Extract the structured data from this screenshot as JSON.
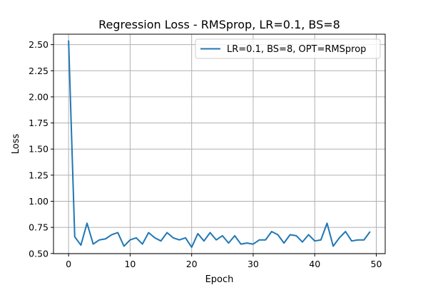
{
  "chart_data": {
    "type": "line",
    "title": "Regression Loss - RMSprop, LR=0.1, BS=8",
    "xlabel": "Epoch",
    "ylabel": "Loss",
    "xlim": [
      -2.45,
      51.45
    ],
    "ylim": [
      0.4985,
      2.5999
    ],
    "xticks": [
      0,
      10,
      20,
      30,
      40,
      50
    ],
    "yticks": [
      0.5,
      0.75,
      1.0,
      1.25,
      1.5,
      1.75,
      2.0,
      2.25,
      2.5
    ],
    "ytick_labels": [
      "0.50",
      "0.75",
      "1.00",
      "1.25",
      "1.50",
      "1.75",
      "2.00",
      "2.25",
      "2.50"
    ],
    "grid": true,
    "legend_position": "upper-right",
    "series": [
      {
        "name": "LR=0.1, BS=8, OPT=RMSprop",
        "color": "#1f77b4",
        "x": [
          0,
          1,
          2,
          3,
          4,
          5,
          6,
          7,
          8,
          9,
          10,
          11,
          12,
          13,
          14,
          15,
          16,
          17,
          18,
          19,
          20,
          21,
          22,
          23,
          24,
          25,
          26,
          27,
          28,
          29,
          30,
          31,
          32,
          33,
          34,
          35,
          36,
          37,
          38,
          39,
          40,
          41,
          42,
          43,
          44,
          45,
          46,
          47,
          48,
          49
        ],
        "values": [
          2.54,
          0.66,
          0.58,
          0.79,
          0.59,
          0.63,
          0.64,
          0.68,
          0.7,
          0.57,
          0.63,
          0.65,
          0.59,
          0.7,
          0.65,
          0.62,
          0.7,
          0.65,
          0.63,
          0.65,
          0.56,
          0.69,
          0.62,
          0.7,
          0.63,
          0.67,
          0.6,
          0.67,
          0.59,
          0.6,
          0.59,
          0.63,
          0.63,
          0.71,
          0.68,
          0.6,
          0.68,
          0.67,
          0.61,
          0.68,
          0.62,
          0.63,
          0.79,
          0.57,
          0.65,
          0.71,
          0.62,
          0.63,
          0.63,
          0.71
        ]
      }
    ]
  }
}
